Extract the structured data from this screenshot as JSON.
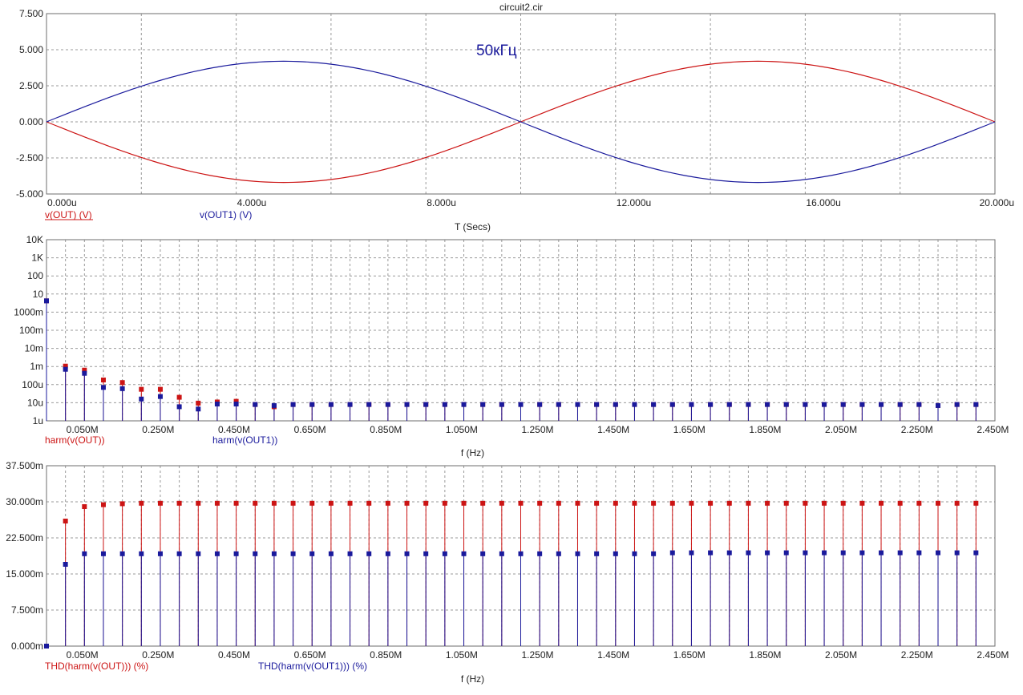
{
  "window": {
    "title": "circuit2.cir"
  },
  "colors": {
    "red": "#cc1414",
    "blue": "#1a1a9c",
    "grid": "#9a9a9a",
    "frame": "#6e6e6e"
  },
  "chart_data": [
    {
      "id": "transient",
      "type": "line",
      "annotation": "50кГц",
      "xlabel": "T (Secs)",
      "xlim": [
        0,
        20
      ],
      "ylim": [
        -5,
        7.5
      ],
      "x_ticks": [
        {
          "v": 0,
          "label": "0.000u"
        },
        {
          "v": 4,
          "label": "4.000u"
        },
        {
          "v": 8,
          "label": "8.000u"
        },
        {
          "v": 12,
          "label": "12.000u"
        },
        {
          "v": 16,
          "label": "16.000u"
        },
        {
          "v": 20,
          "label": "20.000u"
        }
      ],
      "x_grid": [
        0,
        2,
        4,
        6,
        8,
        10,
        12,
        14,
        16,
        18,
        20
      ],
      "y_ticks": [
        {
          "v": 7.5,
          "label": "7.500"
        },
        {
          "v": 5,
          "label": "5.000"
        },
        {
          "v": 2.5,
          "label": "2.500"
        },
        {
          "v": 0,
          "label": "0.000"
        },
        {
          "v": -2.5,
          "label": "-2.500"
        },
        {
          "v": -5,
          "label": "-5.000"
        }
      ],
      "series": [
        {
          "name": "v(OUT) (V)",
          "color": "red",
          "x": [
            0,
            1,
            2,
            3,
            4,
            5,
            6,
            7,
            8,
            9,
            10,
            11,
            12,
            13,
            14,
            15,
            16,
            17,
            18,
            19,
            20
          ],
          "values": [
            0,
            -1.3,
            -2.47,
            -3.4,
            -4.0,
            -4.2,
            -4.0,
            -3.4,
            -2.47,
            -1.3,
            0,
            1.3,
            2.47,
            3.4,
            4.0,
            4.2,
            4.0,
            3.4,
            2.47,
            1.3,
            0
          ]
        },
        {
          "name": "v(OUT1) (V)",
          "color": "blue",
          "x": [
            0,
            1,
            2,
            3,
            4,
            5,
            6,
            7,
            8,
            9,
            10,
            11,
            12,
            13,
            14,
            15,
            16,
            17,
            18,
            19,
            20
          ],
          "values": [
            0,
            1.3,
            2.47,
            3.4,
            4.0,
            4.2,
            4.0,
            3.4,
            2.47,
            1.3,
            0,
            -1.3,
            -2.47,
            -3.4,
            -4.0,
            -4.2,
            -4.0,
            -3.4,
            -2.47,
            -1.3,
            0
          ]
        }
      ]
    },
    {
      "id": "harmonics",
      "type": "stem",
      "scale": "log",
      "xlabel": "f (Hz)",
      "xlim_mhz": [
        0,
        2.5
      ],
      "ylim": [
        1e-06,
        10000
      ],
      "x_ticks": [
        {
          "v": 0.05,
          "label": "0.050M"
        },
        {
          "v": 0.25,
          "label": "0.250M"
        },
        {
          "v": 0.45,
          "label": "0.450M"
        },
        {
          "v": 0.65,
          "label": "0.650M"
        },
        {
          "v": 0.85,
          "label": "0.850M"
        },
        {
          "v": 1.05,
          "label": "1.050M"
        },
        {
          "v": 1.25,
          "label": "1.250M"
        },
        {
          "v": 1.45,
          "label": "1.450M"
        },
        {
          "v": 1.65,
          "label": "1.650M"
        },
        {
          "v": 1.85,
          "label": "1.850M"
        },
        {
          "v": 2.05,
          "label": "2.050M"
        },
        {
          "v": 2.25,
          "label": "2.250M"
        },
        {
          "v": 2.45,
          "label": "2.450M"
        }
      ],
      "y_ticks": [
        {
          "v": 10000,
          "label": "10K"
        },
        {
          "v": 1000,
          "label": "1K"
        },
        {
          "v": 100,
          "label": "100"
        },
        {
          "v": 10,
          "label": "10"
        },
        {
          "v": 1,
          "label": "1000m"
        },
        {
          "v": 0.1,
          "label": "100m"
        },
        {
          "v": 0.01,
          "label": "10m"
        },
        {
          "v": 0.001,
          "label": "1m"
        },
        {
          "v": 0.0001,
          "label": "100u"
        },
        {
          "v": 1e-05,
          "label": "10u"
        },
        {
          "v": 1e-06,
          "label": "1u"
        }
      ],
      "harmonic_step_mhz": 0.05,
      "series": [
        {
          "name": "harm(v(OUT))",
          "color": "red",
          "values": [
            4.2,
            0.00105,
            0.00063,
            0.00018,
            0.00013,
            5.5e-05,
            5.5e-05,
            2e-05,
            9.5e-06,
            1.1e-05,
            1.2e-05,
            8e-06,
            6e-06,
            8e-06,
            8e-06,
            8e-06,
            8e-06,
            8e-06,
            8e-06,
            8e-06,
            8e-06,
            8e-06,
            8e-06,
            8e-06,
            8e-06,
            8e-06,
            8e-06,
            8e-06,
            8e-06,
            8e-06,
            8e-06,
            8e-06,
            8e-06,
            8e-06,
            8e-06,
            8e-06,
            8e-06,
            8e-06,
            8e-06,
            8e-06,
            8e-06,
            8e-06,
            8e-06,
            8e-06,
            8e-06,
            8e-06,
            8e-06,
            7e-06,
            8e-06,
            8e-06
          ]
        },
        {
          "name": "harm(v(OUT1))",
          "color": "blue",
          "values": [
            4.2,
            0.0007,
            0.00042,
            7e-05,
            6e-05,
            1.6e-05,
            2.2e-05,
            6e-06,
            4.5e-06,
            8.5e-06,
            8.5e-06,
            8e-06,
            7e-06,
            8e-06,
            8e-06,
            8e-06,
            8e-06,
            8e-06,
            8e-06,
            8e-06,
            8e-06,
            8e-06,
            8e-06,
            8e-06,
            8e-06,
            8e-06,
            8e-06,
            8e-06,
            8e-06,
            8e-06,
            8e-06,
            8e-06,
            8e-06,
            8e-06,
            8e-06,
            8e-06,
            8e-06,
            8e-06,
            8e-06,
            8e-06,
            8e-06,
            8e-06,
            8e-06,
            8e-06,
            8e-06,
            8e-06,
            8e-06,
            7e-06,
            8e-06,
            8e-06
          ]
        }
      ]
    },
    {
      "id": "thd",
      "type": "stem",
      "xlabel": "f (Hz)",
      "xlim_mhz": [
        0,
        2.5
      ],
      "ylim": [
        0,
        37.5
      ],
      "x_ticks": [
        {
          "v": 0.05,
          "label": "0.050M"
        },
        {
          "v": 0.25,
          "label": "0.250M"
        },
        {
          "v": 0.45,
          "label": "0.450M"
        },
        {
          "v": 0.65,
          "label": "0.650M"
        },
        {
          "v": 0.85,
          "label": "0.850M"
        },
        {
          "v": 1.05,
          "label": "1.050M"
        },
        {
          "v": 1.25,
          "label": "1.250M"
        },
        {
          "v": 1.45,
          "label": "1.450M"
        },
        {
          "v": 1.65,
          "label": "1.650M"
        },
        {
          "v": 1.85,
          "label": "1.850M"
        },
        {
          "v": 2.05,
          "label": "2.050M"
        },
        {
          "v": 2.25,
          "label": "2.250M"
        },
        {
          "v": 2.45,
          "label": "2.450M"
        }
      ],
      "y_ticks": [
        {
          "v": 37.5,
          "label": "37.500m"
        },
        {
          "v": 30,
          "label": "30.000m"
        },
        {
          "v": 22.5,
          "label": "22.500m"
        },
        {
          "v": 15,
          "label": "15.000m"
        },
        {
          "v": 7.5,
          "label": "7.500m"
        },
        {
          "v": 0,
          "label": "0.000m"
        }
      ],
      "harmonic_step_mhz": 0.05,
      "series": [
        {
          "name": "THD(harm(v(OUT))) (%)",
          "color": "red",
          "values": [
            0,
            26.0,
            29.0,
            29.4,
            29.6,
            29.7,
            29.7,
            29.7,
            29.7,
            29.7,
            29.7,
            29.7,
            29.7,
            29.7,
            29.7,
            29.7,
            29.7,
            29.7,
            29.7,
            29.7,
            29.7,
            29.7,
            29.7,
            29.7,
            29.7,
            29.7,
            29.7,
            29.7,
            29.7,
            29.7,
            29.7,
            29.7,
            29.7,
            29.7,
            29.7,
            29.7,
            29.7,
            29.7,
            29.7,
            29.7,
            29.7,
            29.7,
            29.7,
            29.7,
            29.7,
            29.7,
            29.7,
            29.7,
            29.7,
            29.7
          ]
        },
        {
          "name": "THD(harm(v(OUT1))) (%)",
          "color": "blue",
          "values": [
            0,
            17.0,
            19.2,
            19.2,
            19.2,
            19.2,
            19.2,
            19.2,
            19.2,
            19.2,
            19.2,
            19.2,
            19.2,
            19.2,
            19.2,
            19.2,
            19.2,
            19.2,
            19.2,
            19.2,
            19.2,
            19.2,
            19.2,
            19.2,
            19.2,
            19.2,
            19.2,
            19.2,
            19.2,
            19.2,
            19.2,
            19.2,
            19.2,
            19.4,
            19.4,
            19.4,
            19.4,
            19.4,
            19.4,
            19.4,
            19.4,
            19.4,
            19.4,
            19.4,
            19.4,
            19.4,
            19.4,
            19.4,
            19.4,
            19.4
          ]
        }
      ]
    }
  ]
}
